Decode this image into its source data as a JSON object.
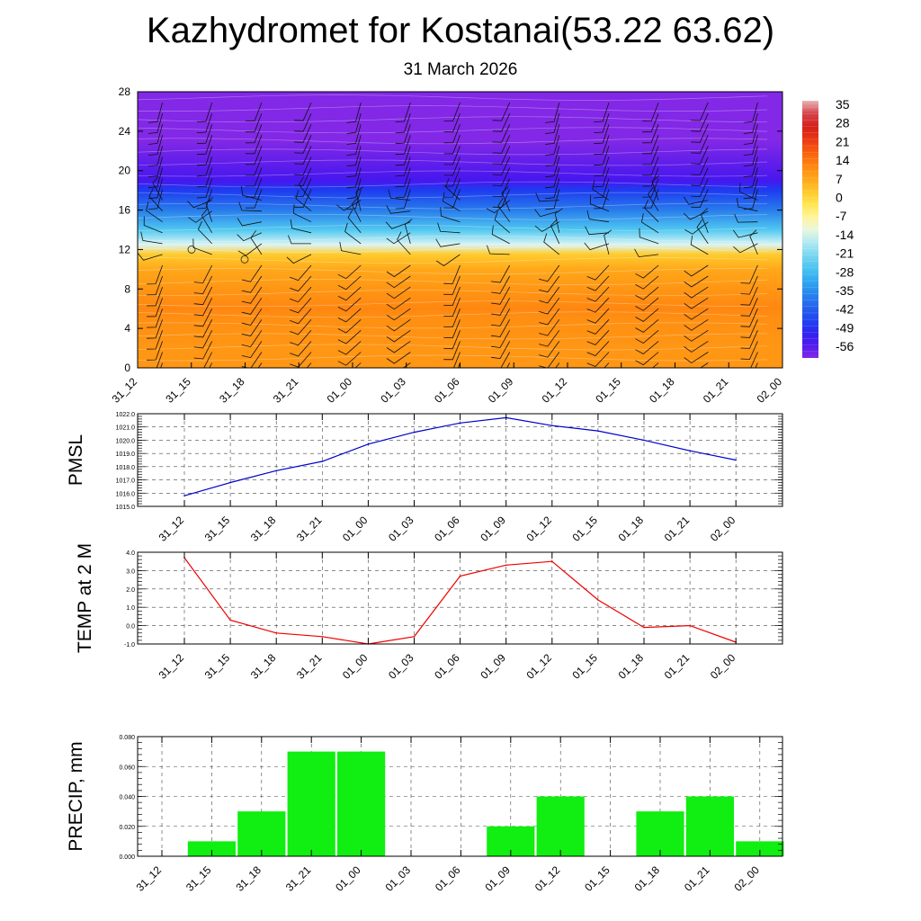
{
  "title": "Kazhydromet for Kostanai(53.22 63.62)",
  "date": "31 March 2026",
  "chart_data": [
    {
      "type": "heatmap",
      "name": "upper-air temperature cross-section with wind barbs",
      "x_ticks": [
        "31_12",
        "31_15",
        "31_18",
        "31_21",
        "01_00",
        "01_03",
        "01_06",
        "01_09",
        "01_12",
        "01_15",
        "01_18",
        "01_21",
        "02_00"
      ],
      "y_ticks": [
        0,
        4,
        8,
        12,
        16,
        20,
        24,
        28
      ],
      "ylim": [
        0,
        28
      ],
      "colorbar_labels": [
        "35",
        "28",
        "21",
        "14",
        "7",
        "0",
        "-7",
        "-14",
        "-21",
        "-28",
        "-35",
        "-42",
        "-49",
        "-56"
      ],
      "layers": [
        {
          "height": 0,
          "value": 8
        },
        {
          "height": 2,
          "value": 8
        },
        {
          "height": 5,
          "value": 9
        },
        {
          "height": 6,
          "value": 10
        },
        {
          "height": 8,
          "value": 8
        },
        {
          "height": 10,
          "value": 5
        },
        {
          "height": 11.5,
          "value": 0
        },
        {
          "height": 12.5,
          "value": -16
        },
        {
          "height": 14,
          "value": -28
        },
        {
          "height": 16,
          "value": -40
        },
        {
          "height": 18,
          "value": -50
        },
        {
          "height": 19,
          "value": -57
        },
        {
          "height": 21,
          "value": -60
        },
        {
          "height": 23,
          "value": -63
        },
        {
          "height": 28,
          "value": -63
        }
      ]
    },
    {
      "type": "line",
      "name": "PMSL",
      "ylabel": "PMSL",
      "x": [
        "31_12",
        "31_15",
        "31_18",
        "31_21",
        "01_00",
        "01_03",
        "01_06",
        "01_09",
        "01_12",
        "01_15",
        "01_18",
        "01_21",
        "02_00"
      ],
      "values": [
        1015.8,
        1016.8,
        1017.7,
        1018.4,
        1019.7,
        1020.6,
        1021.3,
        1021.7,
        1021.1,
        1020.7,
        1020.0,
        1019.2,
        1018.5
      ],
      "ylim": [
        1015.0,
        1022.0
      ],
      "y_ticks": [
        "1015.0",
        "1016.0",
        "1017.0",
        "1018.0",
        "1019.0",
        "1020.0",
        "1021.0",
        "1022.0"
      ],
      "color": "#0000cc"
    },
    {
      "type": "line",
      "name": "TEMP at 2 M",
      "ylabel": "TEMP at 2 M",
      "x": [
        "31_12",
        "31_15",
        "31_18",
        "31_21",
        "01_00",
        "01_03",
        "01_06",
        "01_09",
        "01_12",
        "01_15",
        "01_18",
        "01_21",
        "02_00"
      ],
      "values": [
        3.7,
        0.3,
        -0.4,
        -0.6,
        -1.0,
        -0.6,
        2.7,
        3.3,
        3.5,
        1.4,
        -0.1,
        0.0,
        -0.9
      ],
      "ylim": [
        -1.0,
        4.0
      ],
      "y_ticks": [
        "-1.0",
        "0.0",
        "1.0",
        "2.0",
        "3.0",
        "4.0"
      ],
      "color": "#ee0000"
    },
    {
      "type": "bar",
      "name": "PRECIP, mm",
      "ylabel": "PRECIP, mm",
      "categories": [
        "31_12",
        "31_15",
        "31_18",
        "31_21",
        "01_00",
        "01_03",
        "01_06",
        "01_09",
        "01_12",
        "01_15",
        "01_18",
        "01_21",
        "02_00"
      ],
      "values": [
        0,
        0.01,
        0.03,
        0.07,
        0.07,
        0,
        0,
        0.02,
        0.04,
        0,
        0.03,
        0.04,
        0.01
      ],
      "ylim": [
        0,
        0.08
      ],
      "y_ticks": [
        "0.000",
        "0.020",
        "0.040",
        "0.060",
        "0.080"
      ],
      "color": "#11ee11"
    }
  ]
}
